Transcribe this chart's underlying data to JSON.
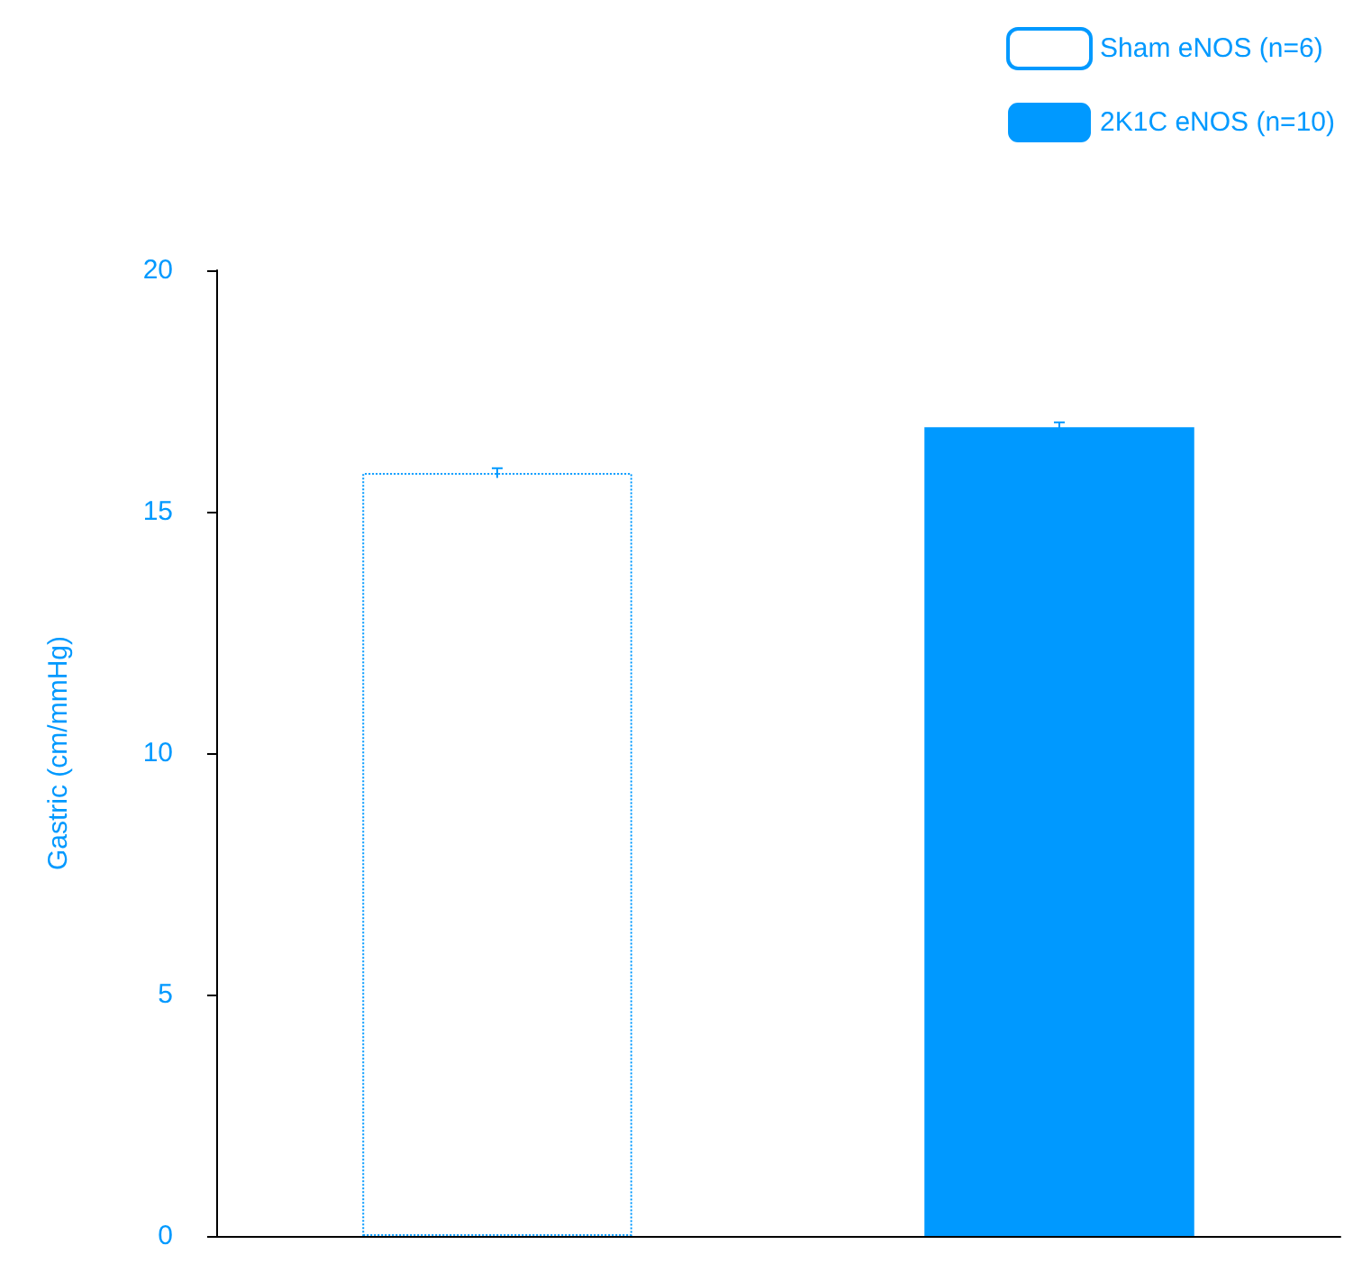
{
  "chart_data": {
    "type": "bar",
    "ylabel": "Gastric (cm/mmHg)",
    "categories": [
      null,
      null
    ],
    "series": [
      {
        "name": "Sham eNOS (n=6)",
        "color": "#ffffff",
        "values": [
          15.8,
          null
        ],
        "errors": [
          0.1,
          null
        ]
      },
      {
        "name": "2K1C eNOS (n=10)",
        "color": "#0099ff",
        "values": [
          null,
          16.75
        ],
        "errors": [
          null,
          0.1
        ]
      }
    ],
    "ylim": [
      0,
      20
    ],
    "yticks": [
      0,
      5,
      10,
      15,
      20
    ],
    "grid": false,
    "legend": "top right"
  }
}
